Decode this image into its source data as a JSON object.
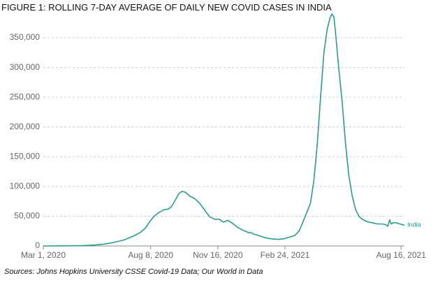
{
  "title": "FIGURE 1: ROLLING 7-DAY AVERAGE OF DAILY NEW COVID CASES IN INDIA",
  "source": "Sources: Johns Hopkins University CSSE Covid-19 Data; Our World in Data",
  "colors": {
    "series": "#2a9d8f"
  },
  "chart_data": {
    "type": "line",
    "title": "FIGURE 1: ROLLING 7-DAY AVERAGE OF DAILY NEW COVID CASES IN INDIA",
    "xlabel": "",
    "ylabel": "",
    "x_range_days": [
      0,
      538
    ],
    "ylim": [
      0,
      390000
    ],
    "grid": true,
    "y_ticks": [
      {
        "value": 0,
        "label": "0"
      },
      {
        "value": 50000,
        "label": "50,000"
      },
      {
        "value": 100000,
        "label": "100,000"
      },
      {
        "value": 150000,
        "label": "150,000"
      },
      {
        "value": 200000,
        "label": "200,000"
      },
      {
        "value": 250000,
        "label": "250,000"
      },
      {
        "value": 300000,
        "label": "300,000"
      },
      {
        "value": 350000,
        "label": "350,000"
      }
    ],
    "x_ticks": [
      {
        "day": 0,
        "label": "Mar 1, 2020"
      },
      {
        "day": 160,
        "label": "Aug 8, 2020"
      },
      {
        "day": 260,
        "label": "Nov 16, 2020"
      },
      {
        "day": 360,
        "label": "Feb 24, 2021"
      },
      {
        "day": 533,
        "label": "Aug 16, 2021"
      }
    ],
    "series": [
      {
        "name": "India",
        "label": "India",
        "x": [
          0,
          20,
          40,
          60,
          75,
          90,
          105,
          120,
          135,
          145,
          152,
          158,
          165,
          172,
          180,
          186,
          190,
          193,
          197,
          202,
          207,
          212,
          218,
          225,
          232,
          238,
          243,
          248,
          255,
          262,
          268,
          275,
          282,
          290,
          298,
          303,
          306,
          309,
          313,
          320,
          330,
          340,
          350,
          358,
          364,
          370,
          375,
          381,
          386,
          392,
          398,
          403,
          408,
          413,
          418,
          423,
          427,
          430,
          433,
          436,
          440,
          445,
          450,
          455,
          460,
          465,
          470,
          475,
          482,
          490,
          498,
          505,
          510,
          513,
          516,
          518,
          521,
          526,
          531,
          538
        ],
        "values": [
          50,
          100,
          300,
          700,
          1500,
          3000,
          6000,
          10000,
          17000,
          23000,
          30000,
          40000,
          50000,
          56000,
          61000,
          62000,
          65000,
          70000,
          78000,
          88000,
          92000,
          90000,
          84000,
          80000,
          73000,
          64000,
          56000,
          49000,
          45000,
          45000,
          40000,
          43000,
          38000,
          31000,
          26000,
          24000,
          22000,
          23000,
          20000,
          18000,
          14000,
          12000,
          11000,
          12000,
          14000,
          16000,
          18000,
          25000,
          38000,
          55000,
          72000,
          110000,
          170000,
          250000,
          325000,
          365000,
          383000,
          390000,
          385000,
          350000,
          300000,
          245000,
          175000,
          120000,
          85000,
          62000,
          50000,
          45000,
          41000,
          39000,
          37000,
          37000,
          36000,
          33000,
          44000,
          37000,
          39000,
          39000,
          37000,
          35000
        ]
      }
    ]
  }
}
